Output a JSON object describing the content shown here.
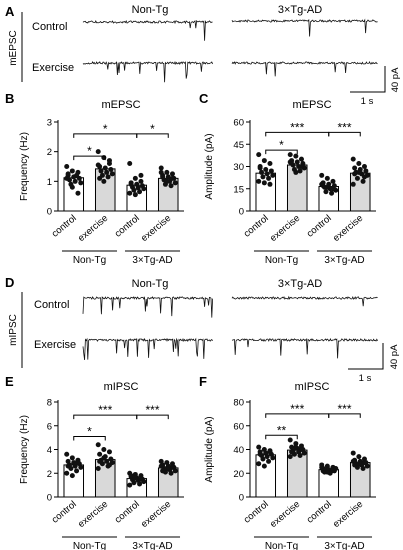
{
  "panels": {
    "A": "A",
    "B": "B",
    "C": "C",
    "D": "D",
    "E": "E",
    "F": "F"
  },
  "traces": {
    "top": {
      "ylabel": "mEPSC",
      "col_left": "Non-Tg",
      "col_right": "3×Tg-AD",
      "row1": "Control",
      "row2": "Exercise",
      "scale_y": "40 pA",
      "scale_x": "1 s"
    },
    "bottom": {
      "ylabel": "mIPSC",
      "col_left": "Non-Tg",
      "col_right": "3×Tg-AD",
      "row1": "Control",
      "row2": "Exercise",
      "scale_y": "40 pA",
      "scale_x": "1 s"
    }
  },
  "groups": [
    "Non-Tg",
    "3×Tg-AD"
  ],
  "chart_data": [
    {
      "id": "B",
      "type": "bar",
      "title": "mEPSC",
      "ylabel": "Frequency (Hz)",
      "ylim": [
        0,
        3
      ],
      "yticks": [
        "0",
        "1",
        "2",
        "3"
      ],
      "ytick_values": [
        0,
        1,
        2,
        3
      ],
      "categories": [
        "control",
        "exercise",
        "control",
        "exercise"
      ],
      "values": [
        1.12,
        1.42,
        0.87,
        1.1
      ],
      "points": [
        [
          1.5,
          1.35,
          1.3,
          1.2,
          1.15,
          1.1,
          1.05,
          1.0,
          0.95,
          0.9,
          1.2,
          1.1,
          0.8,
          0.6,
          1.25
        ],
        [
          2.0,
          1.8,
          1.6,
          1.5,
          1.45,
          1.4,
          1.35,
          1.3,
          1.25,
          1.2,
          1.15,
          1.55,
          1.0,
          1.7,
          1.1
        ],
        [
          1.6,
          1.1,
          1.0,
          0.95,
          0.9,
          0.85,
          0.8,
          0.78,
          0.75,
          0.7,
          0.65,
          0.6,
          0.55,
          1.2,
          0.9
        ],
        [
          1.45,
          1.3,
          1.25,
          1.2,
          1.15,
          1.1,
          1.05,
          1.0,
          0.95,
          0.9,
          0.85,
          1.3,
          1.0,
          1.1,
          1.15
        ]
      ],
      "significance": [
        {
          "from": 0,
          "to": 1,
          "label": "*",
          "y": 1.85
        },
        {
          "from": 0,
          "to": 2,
          "label": "*",
          "y": 2.6
        },
        {
          "from": 2,
          "to": 3,
          "label": "*",
          "y": 2.6
        }
      ]
    },
    {
      "id": "C",
      "type": "bar",
      "title": "mEPSC",
      "ylabel": "Amplitude (pA)",
      "ylim": [
        0,
        60
      ],
      "yticks": [
        "0",
        "15",
        "30",
        "45",
        "60"
      ],
      "ytick_values": [
        0,
        15,
        30,
        45,
        60
      ],
      "categories": [
        "control",
        "exercise",
        "control",
        "exercise"
      ],
      "values": [
        25.5,
        31.0,
        16.5,
        25.5
      ],
      "points": [
        [
          38,
          34,
          32,
          30,
          28,
          27,
          26,
          25,
          24,
          23,
          22,
          20,
          19,
          18,
          29
        ],
        [
          38,
          37,
          35,
          34,
          33,
          32,
          31,
          30,
          29,
          28,
          27,
          33,
          26,
          30,
          32
        ],
        [
          24,
          22,
          20,
          19,
          18,
          17,
          16,
          15,
          14,
          13,
          12,
          18,
          16,
          15,
          17
        ],
        [
          35,
          32,
          30,
          29,
          28,
          27,
          26,
          25,
          24,
          22,
          20,
          18,
          26,
          23,
          25
        ]
      ],
      "significance": [
        {
          "from": 0,
          "to": 1,
          "label": "*",
          "y": 41
        },
        {
          "from": 0,
          "to": 2,
          "label": "***",
          "y": 53
        },
        {
          "from": 2,
          "to": 3,
          "label": "***",
          "y": 53
        }
      ]
    },
    {
      "id": "E",
      "type": "bar",
      "title": "mIPSC",
      "ylabel": "Frequency (Hz)",
      "ylim": [
        0,
        8
      ],
      "yticks": [
        "0",
        "2",
        "4",
        "6",
        "8"
      ],
      "ytick_values": [
        0,
        2,
        4,
        6,
        8
      ],
      "categories": [
        "control",
        "exercise",
        "control",
        "exercise"
      ],
      "values": [
        2.7,
        3.15,
        1.55,
        2.45
      ],
      "points": [
        [
          3.6,
          3.3,
          3.1,
          3.0,
          2.9,
          2.8,
          2.7,
          2.6,
          2.5,
          2.4,
          2.2,
          2.0,
          1.8,
          2.9,
          2.6
        ],
        [
          4.4,
          4.0,
          3.8,
          3.6,
          3.4,
          3.2,
          3.1,
          3.0,
          2.9,
          2.8,
          2.6,
          2.4,
          3.3,
          2.7,
          3.0
        ],
        [
          2.0,
          1.9,
          1.8,
          1.7,
          1.6,
          1.5,
          1.45,
          1.4,
          1.3,
          1.2,
          1.1,
          1.0,
          1.6,
          1.5,
          1.8
        ],
        [
          3.0,
          2.9,
          2.8,
          2.7,
          2.6,
          2.5,
          2.4,
          2.3,
          2.2,
          2.1,
          2.0,
          2.6,
          2.4,
          2.5,
          2.2
        ]
      ],
      "significance": [
        {
          "from": 0,
          "to": 1,
          "label": "*",
          "y": 5.1
        },
        {
          "from": 0,
          "to": 2,
          "label": "***",
          "y": 6.9
        },
        {
          "from": 2,
          "to": 3,
          "label": "***",
          "y": 6.9
        }
      ]
    },
    {
      "id": "F",
      "type": "bar",
      "title": "mIPSC",
      "ylabel": "Amplitude (pA)",
      "ylim": [
        0,
        80
      ],
      "yticks": [
        "0",
        "20",
        "40",
        "60",
        "80"
      ],
      "ytick_values": [
        0,
        20,
        40,
        60,
        80
      ],
      "categories": [
        "control",
        "exercise",
        "control",
        "exercise"
      ],
      "values": [
        35.5,
        39.5,
        23.0,
        29.0
      ],
      "points": [
        [
          42,
          40,
          39,
          38,
          37,
          36,
          35,
          34,
          33,
          32,
          30,
          28,
          26,
          38,
          36
        ],
        [
          48,
          45,
          43,
          42,
          41,
          40,
          39,
          38,
          37,
          36,
          35,
          34,
          42,
          40,
          38
        ],
        [
          27,
          26,
          25,
          24,
          23,
          22,
          21,
          20,
          24,
          23,
          22,
          25,
          21,
          23,
          22
        ],
        [
          37,
          34,
          32,
          31,
          30,
          29,
          28,
          27,
          26,
          25,
          24,
          30,
          28,
          29,
          27
        ]
      ],
      "significance": [
        {
          "from": 0,
          "to": 1,
          "label": "**",
          "y": 52
        },
        {
          "from": 0,
          "to": 2,
          "label": "***",
          "y": 70
        },
        {
          "from": 2,
          "to": 3,
          "label": "***",
          "y": 70
        }
      ]
    }
  ],
  "style": {
    "bar_fill_control": "#ffffff",
    "bar_fill_exercise": "#d9d9d9",
    "bar_stroke": "#000000",
    "dot_fill": "#111111"
  }
}
